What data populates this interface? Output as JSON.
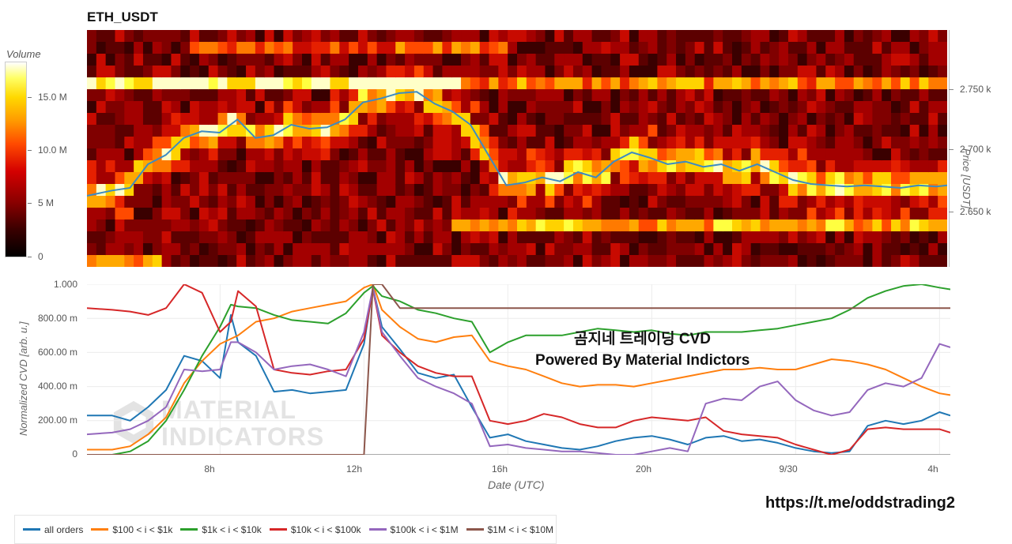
{
  "title": "ETH_USDT",
  "colorbar": {
    "title": "Volume",
    "ticks": [
      "15.0 M",
      "10.0 M",
      "5 M",
      "0"
    ]
  },
  "price_axis": {
    "label": "Price [USDT]",
    "ticks": [
      "2.750 k",
      "2.700 k",
      "2.650 k"
    ]
  },
  "cvd_axis": {
    "label": "Normalized CVD [arb. u.]",
    "ticks": [
      "1.000",
      "800.00 m",
      "600.00 m",
      "400.00 m",
      "200.00 m",
      "0"
    ]
  },
  "x_axis": {
    "label": "Date (UTC)",
    "ticks": [
      "8h",
      "12h",
      "16h",
      "20h",
      "9/30",
      "4h"
    ]
  },
  "overlay": {
    "line1": "곰지네 트레이딩 CVD",
    "line2": "Powered By Material Indictors"
  },
  "watermark": {
    "line1": "MATERIAL",
    "line2": "INDICATORS"
  },
  "telegram": "https://t.me/oddstrading2",
  "legend": [
    {
      "label": "all orders",
      "color": "#1f77b4"
    },
    {
      "label": "$100 < i < $1k",
      "color": "#ff7f0e"
    },
    {
      "label": "$1k < i < $10k",
      "color": "#2ca02c"
    },
    {
      "label": "$10k < i < $100k",
      "color": "#d62728"
    },
    {
      "label": "$100k < i < $1M",
      "color": "#9467bd"
    },
    {
      "label": "$1M < i < $10M",
      "color": "#8c564b"
    }
  ],
  "chart_data": [
    {
      "type": "heatmap",
      "title": "ETH_USDT",
      "colorbar_label": "Volume",
      "y_label": "Price [USDT]",
      "y_range": [
        2610,
        2790
      ],
      "price_line": {
        "x_hours": [
          4.3,
          5,
          5.5,
          6,
          6.5,
          7,
          7.5,
          8,
          8.5,
          9,
          9.5,
          10,
          10.5,
          11,
          11.5,
          12,
          12.5,
          13,
          13.5,
          14,
          14.5,
          15,
          15.5,
          16,
          16.5,
          17,
          17.5,
          18,
          18.5,
          19,
          19.5,
          20,
          20.5,
          21,
          21.5,
          22,
          22.5,
          23,
          23.5,
          24,
          24.5,
          25,
          25.5,
          26,
          26.5,
          27,
          27.5,
          28,
          28.3
        ],
        "price": [
          2664,
          2668,
          2670,
          2688,
          2695,
          2708,
          2713,
          2712,
          2722,
          2708,
          2710,
          2718,
          2715,
          2716,
          2722,
          2735,
          2738,
          2742,
          2743,
          2734,
          2728,
          2718,
          2695,
          2672,
          2674,
          2678,
          2675,
          2682,
          2678,
          2690,
          2697,
          2693,
          2688,
          2690,
          2686,
          2688,
          2683,
          2688,
          2682,
          2676,
          2673,
          2672,
          2671,
          2672,
          2671,
          2670,
          2672,
          2671,
          2672
        ]
      }
    },
    {
      "type": "line",
      "xlabel": "Date (UTC)",
      "ylabel": "Normalized CVD [arb. u.]",
      "xlim": [
        4.3,
        28.3
      ],
      "ylim": [
        0,
        1
      ],
      "x": [
        4.3,
        5,
        5.5,
        6,
        6.5,
        7,
        7.5,
        8,
        8.3,
        8.5,
        9,
        9.5,
        10,
        10.5,
        11,
        11.5,
        12,
        12.25,
        12.5,
        13,
        13.5,
        14,
        14.5,
        15,
        15.5,
        16,
        16.5,
        17,
        17.5,
        18,
        18.5,
        19,
        19.5,
        20,
        20.5,
        21,
        21.5,
        22,
        22.5,
        23,
        23.5,
        24,
        24.5,
        25,
        25.5,
        26,
        26.5,
        27,
        27.5,
        28,
        28.3
      ],
      "series": [
        {
          "name": "all orders",
          "values": [
            0.23,
            0.23,
            0.2,
            0.28,
            0.38,
            0.58,
            0.55,
            0.45,
            0.82,
            0.66,
            0.58,
            0.37,
            0.38,
            0.36,
            0.37,
            0.38,
            0.65,
            0.98,
            0.75,
            0.62,
            0.48,
            0.45,
            0.47,
            0.28,
            0.1,
            0.12,
            0.08,
            0.06,
            0.04,
            0.03,
            0.05,
            0.08,
            0.1,
            0.11,
            0.09,
            0.06,
            0.1,
            0.11,
            0.08,
            0.09,
            0.07,
            0.04,
            0.02,
            0.01,
            0.02,
            0.17,
            0.2,
            0.18,
            0.2,
            0.25,
            0.23
          ]
        },
        {
          "name": "$100 < i < $1k",
          "values": [
            0.03,
            0.03,
            0.05,
            0.12,
            0.22,
            0.42,
            0.55,
            0.65,
            0.68,
            0.7,
            0.78,
            0.8,
            0.84,
            0.86,
            0.88,
            0.9,
            0.98,
            1.0,
            0.85,
            0.75,
            0.68,
            0.66,
            0.69,
            0.7,
            0.55,
            0.52,
            0.5,
            0.46,
            0.42,
            0.4,
            0.41,
            0.41,
            0.4,
            0.42,
            0.44,
            0.46,
            0.48,
            0.5,
            0.5,
            0.51,
            0.5,
            0.5,
            0.53,
            0.56,
            0.55,
            0.53,
            0.5,
            0.45,
            0.4,
            0.36,
            0.35
          ]
        },
        {
          "name": "$1k < i < $10k",
          "values": [
            0.0,
            0.0,
            0.02,
            0.08,
            0.2,
            0.38,
            0.58,
            0.75,
            0.88,
            0.87,
            0.86,
            0.82,
            0.79,
            0.78,
            0.77,
            0.83,
            0.95,
            0.99,
            0.93,
            0.9,
            0.85,
            0.83,
            0.8,
            0.78,
            0.6,
            0.66,
            0.7,
            0.7,
            0.7,
            0.72,
            0.74,
            0.73,
            0.72,
            0.73,
            0.71,
            0.7,
            0.72,
            0.72,
            0.72,
            0.73,
            0.74,
            0.76,
            0.78,
            0.8,
            0.85,
            0.92,
            0.96,
            0.99,
            1.0,
            0.98,
            0.97
          ]
        },
        {
          "name": "$10k < i < $100k",
          "values": [
            0.86,
            0.85,
            0.84,
            0.82,
            0.86,
            1.0,
            0.95,
            0.72,
            0.78,
            0.96,
            0.87,
            0.5,
            0.48,
            0.47,
            0.49,
            0.5,
            0.68,
            0.97,
            0.7,
            0.6,
            0.52,
            0.48,
            0.46,
            0.46,
            0.2,
            0.18,
            0.2,
            0.24,
            0.22,
            0.18,
            0.16,
            0.16,
            0.2,
            0.22,
            0.21,
            0.2,
            0.22,
            0.14,
            0.12,
            0.11,
            0.1,
            0.06,
            0.03,
            0.0,
            0.03,
            0.15,
            0.16,
            0.15,
            0.15,
            0.15,
            0.13
          ]
        },
        {
          "name": "$100k < i < $1M",
          "values": [
            0.12,
            0.13,
            0.15,
            0.2,
            0.28,
            0.5,
            0.49,
            0.5,
            0.66,
            0.66,
            0.6,
            0.5,
            0.52,
            0.53,
            0.5,
            0.46,
            0.72,
            0.98,
            0.72,
            0.58,
            0.45,
            0.4,
            0.36,
            0.3,
            0.05,
            0.06,
            0.04,
            0.03,
            0.02,
            0.02,
            0.01,
            0.0,
            0.0,
            0.02,
            0.04,
            0.02,
            0.3,
            0.33,
            0.32,
            0.4,
            0.43,
            0.32,
            0.26,
            0.23,
            0.25,
            0.38,
            0.42,
            0.4,
            0.45,
            0.65,
            0.63
          ]
        },
        {
          "name": "$1M < i < $10M",
          "values": [
            0.0,
            0.0,
            0.0,
            0.0,
            0.0,
            0.0,
            0.0,
            0.0,
            0.0,
            0.0,
            0.0,
            0.0,
            0.0,
            0.0,
            0.0,
            0.0,
            0.0,
            1.0,
            1.0,
            0.86,
            0.86,
            0.86,
            0.86,
            0.86,
            0.86,
            0.86,
            0.86,
            0.86,
            0.86,
            0.86,
            0.86,
            0.86,
            0.86,
            0.86,
            0.86,
            0.86,
            0.86,
            0.86,
            0.86,
            0.86,
            0.86,
            0.86,
            0.86,
            0.86,
            0.86,
            0.86,
            0.86,
            0.86,
            0.86,
            0.86,
            0.86
          ]
        }
      ]
    }
  ]
}
